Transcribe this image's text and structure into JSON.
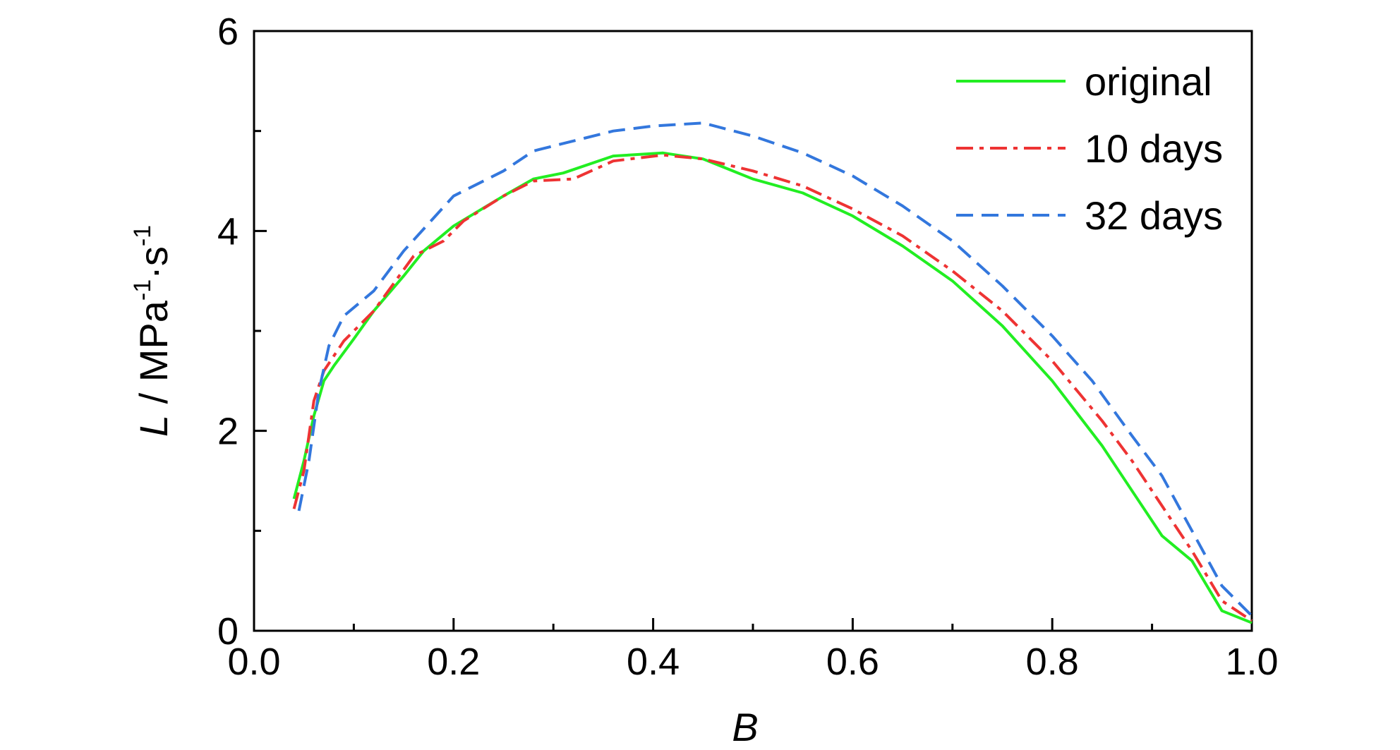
{
  "chart_data": {
    "type": "line",
    "xlabel": "B",
    "ylabel": {
      "var": "L",
      "sep": " / ",
      "base1": "MPa",
      "sup1": "-1",
      "dot": "·",
      "base2": "s",
      "sup2": "-1"
    },
    "xlim": [
      0.0,
      1.0
    ],
    "ylim": [
      0,
      6
    ],
    "xticks": [
      "0.0",
      "0.2",
      "0.4",
      "0.6",
      "0.8",
      "1.0"
    ],
    "yticks": [
      "0",
      "2",
      "4",
      "6"
    ],
    "grid": false,
    "legend_position": "top-right",
    "series": [
      {
        "name": "original",
        "color": "#22ee22",
        "dash": "solid",
        "x": [
          0.04,
          0.05,
          0.06,
          0.07,
          0.08,
          0.1,
          0.12,
          0.15,
          0.17,
          0.2,
          0.25,
          0.28,
          0.31,
          0.36,
          0.41,
          0.45,
          0.5,
          0.55,
          0.6,
          0.65,
          0.7,
          0.75,
          0.8,
          0.85,
          0.88,
          0.91,
          0.94,
          0.97,
          1.0
        ],
        "y": [
          1.32,
          1.7,
          2.15,
          2.5,
          2.65,
          2.92,
          3.2,
          3.55,
          3.8,
          4.05,
          4.35,
          4.52,
          4.58,
          4.75,
          4.78,
          4.72,
          4.52,
          4.38,
          4.15,
          3.85,
          3.5,
          3.05,
          2.5,
          1.85,
          1.4,
          0.95,
          0.7,
          0.2,
          0.08
        ]
      },
      {
        "name": "10 days",
        "color": "#ee3333",
        "dash": "dashdot",
        "x": [
          0.04,
          0.05,
          0.06,
          0.07,
          0.09,
          0.12,
          0.16,
          0.19,
          0.21,
          0.25,
          0.28,
          0.32,
          0.36,
          0.41,
          0.45,
          0.5,
          0.55,
          0.6,
          0.65,
          0.7,
          0.75,
          0.8,
          0.85,
          0.88,
          0.91,
          0.94,
          0.97,
          1.0
        ],
        "y": [
          1.22,
          1.6,
          2.3,
          2.6,
          2.9,
          3.2,
          3.75,
          3.9,
          4.1,
          4.35,
          4.5,
          4.52,
          4.7,
          4.76,
          4.72,
          4.6,
          4.45,
          4.22,
          3.95,
          3.6,
          3.2,
          2.7,
          2.1,
          1.7,
          1.25,
          0.8,
          0.3,
          0.1
        ]
      },
      {
        "name": "32 days",
        "color": "#3377dd",
        "dash": "dashed",
        "x": [
          0.045,
          0.055,
          0.065,
          0.075,
          0.09,
          0.12,
          0.15,
          0.2,
          0.25,
          0.28,
          0.32,
          0.36,
          0.4,
          0.45,
          0.5,
          0.55,
          0.6,
          0.65,
          0.7,
          0.75,
          0.8,
          0.84,
          0.88,
          0.91,
          0.94,
          0.97,
          1.0
        ],
        "y": [
          1.2,
          1.7,
          2.4,
          2.85,
          3.15,
          3.4,
          3.8,
          4.35,
          4.6,
          4.8,
          4.9,
          5.0,
          5.05,
          5.08,
          4.95,
          4.78,
          4.55,
          4.25,
          3.9,
          3.45,
          2.95,
          2.5,
          1.95,
          1.55,
          1.0,
          0.45,
          0.15
        ]
      }
    ]
  }
}
